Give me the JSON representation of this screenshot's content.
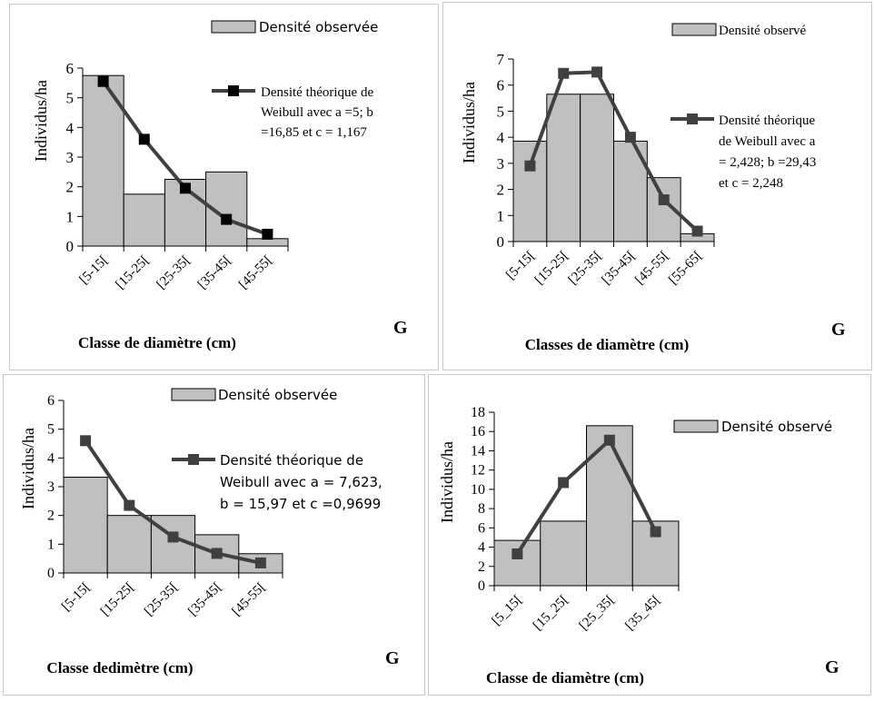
{
  "chart_data": [
    {
      "type": "bar",
      "panel_letter": "G",
      "title": "",
      "xlabel": "Classe de diamètre (cm)",
      "ylabel": "Individus/ha",
      "ylim": [
        0,
        6
      ],
      "y_ticks": [
        "0",
        "1",
        "2",
        "3",
        "4",
        "5",
        "6"
      ],
      "categories": [
        "[5-15[",
        "[15-25[",
        "[25-35[",
        "[35-45[",
        "[45-55["
      ],
      "series": [
        {
          "name": "Densité observée",
          "kind": "bar",
          "values": [
            5.75,
            1.75,
            2.25,
            2.5,
            0.25
          ]
        },
        {
          "name": "Densité théorique de Weibull avec a =5; b =16,85 et c = 1,167",
          "kind": "line",
          "values": [
            5.55,
            3.6,
            1.95,
            0.9,
            0.4
          ]
        }
      ],
      "legend_bar": "Densité observée",
      "legend_line": [
        "Densité théorique de",
        "Weibull avec a =5; b",
        "=16,85 et c = 1,167"
      ]
    },
    {
      "type": "bar",
      "panel_letter": "G",
      "title": "",
      "xlabel": "Classes de diamètre (cm)",
      "ylabel": "Individus/ha",
      "ylim": [
        0,
        7
      ],
      "y_ticks": [
        "0",
        "1",
        "2",
        "3",
        "4",
        "5",
        "6",
        "7"
      ],
      "categories": [
        "[5-15[",
        "[15-25[",
        "[25-35[",
        "[35-45[",
        "[45-55[",
        "[55-65["
      ],
      "series": [
        {
          "name": "Densité observé",
          "kind": "bar",
          "values": [
            3.85,
            5.65,
            5.65,
            3.85,
            2.45,
            0.3
          ]
        },
        {
          "name": "Densité théorique de Weibull avec a = 2,428; b =29,43 et c = 2,248",
          "kind": "line",
          "values": [
            2.9,
            6.45,
            6.5,
            4.0,
            1.6,
            0.4
          ]
        }
      ],
      "legend_bar": "Densité observé",
      "legend_line": [
        "Densité théorique",
        "de Weibull avec a",
        "= 2,428; b =29,43",
        "et c = 2,248"
      ]
    },
    {
      "type": "bar",
      "panel_letter": "G",
      "title": "",
      "xlabel": "Classe dedimètre (cm)",
      "ylabel": "Individus/ha",
      "ylim": [
        0,
        6
      ],
      "y_ticks": [
        "0",
        "1",
        "2",
        "3",
        "4",
        "5",
        "6"
      ],
      "categories": [
        "[5-15[",
        "[15-25[",
        "[25-35[",
        "[35-45[",
        "[45-55["
      ],
      "series": [
        {
          "name": "Densité observée",
          "kind": "bar",
          "values": [
            3.33,
            2.0,
            2.0,
            1.33,
            0.67
          ]
        },
        {
          "name": "Densité théorique de Weibull avec a = 7,623, b = 15,97 et c =0,9699",
          "kind": "line",
          "values": [
            4.6,
            2.35,
            1.25,
            0.68,
            0.35
          ]
        }
      ],
      "legend_bar": "Densité observée",
      "legend_line": [
        "Densité théorique de",
        "Weibull avec a = 7,623,",
        "b = 15,97 et c =0,9699"
      ]
    },
    {
      "type": "bar",
      "panel_letter": "G",
      "title": "",
      "xlabel": "Classe de diamètre (cm)",
      "ylabel": "Individus/ha",
      "ylim": [
        0,
        18
      ],
      "y_ticks": [
        "0",
        "2",
        "4",
        "6",
        "8",
        "10",
        "12",
        "14",
        "16",
        "18"
      ],
      "categories": [
        "[5_15[",
        "[15_25[",
        "[25_35[",
        "[35_45["
      ],
      "series": [
        {
          "name": "Densité observé",
          "kind": "bar",
          "values": [
            4.7,
            6.7,
            16.6,
            6.7
          ]
        },
        {
          "name": "",
          "kind": "line",
          "values": [
            3.3,
            10.7,
            15.1,
            5.6
          ]
        }
      ],
      "legend_bar": "Densité observé",
      "legend_line": []
    }
  ],
  "colors": {
    "bar_fill": "#c0c0c0",
    "bar_stroke": "#000000",
    "line": "#404040",
    "axis": "#000000",
    "panel_border": "#c8c8c8"
  }
}
